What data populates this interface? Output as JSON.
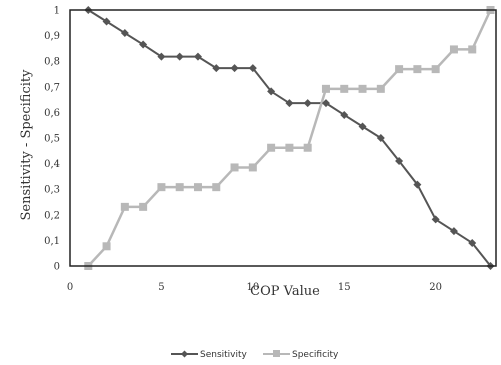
{
  "chart_data": {
    "type": "line",
    "xlabel": "COP Value",
    "ylabel": "Sensitivity - Specificity",
    "xlim": [
      0,
      23.3
    ],
    "ylim": [
      0,
      1
    ],
    "x_ticks": [
      "0",
      "5",
      "10",
      "15",
      "20"
    ],
    "y_ticks": [
      "0",
      "0,1",
      "0,2",
      "0,3",
      "0,4",
      "0,5",
      "0,6",
      "0,7",
      "0,8",
      "0,9",
      "1"
    ],
    "x": [
      1,
      2,
      3,
      4,
      5,
      6,
      7,
      8,
      9,
      10,
      11,
      12,
      13,
      14,
      15,
      16,
      17,
      18,
      19,
      20,
      21,
      22,
      23
    ],
    "legend_position": "bottom",
    "series": [
      {
        "name": "Sensitivity",
        "color": "#555555",
        "marker": "diamond",
        "values": [
          1.0,
          0.955,
          0.91,
          0.865,
          0.818,
          0.818,
          0.818,
          0.773,
          0.773,
          0.773,
          0.682,
          0.636,
          0.636,
          0.636,
          0.59,
          0.545,
          0.5,
          0.41,
          0.318,
          0.182,
          0.136,
          0.09,
          0.0
        ]
      },
      {
        "name": "Specificity",
        "color": "#b8b8b8",
        "marker": "square",
        "values": [
          0.0,
          0.077,
          0.231,
          0.231,
          0.308,
          0.308,
          0.308,
          0.308,
          0.385,
          0.385,
          0.462,
          0.462,
          0.462,
          0.692,
          0.692,
          0.692,
          0.692,
          0.769,
          0.769,
          0.769,
          0.846,
          0.846,
          1.0
        ]
      }
    ]
  }
}
